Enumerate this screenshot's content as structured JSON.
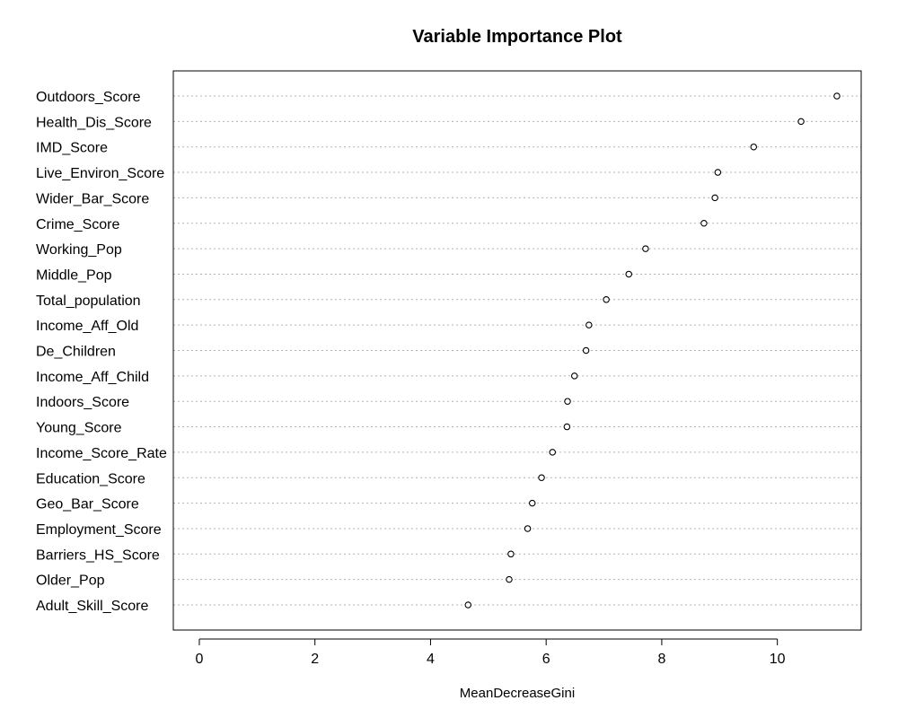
{
  "chart_data": {
    "type": "scatter",
    "title": "Variable Importance Plot",
    "xlabel": "MeanDecreaseGini",
    "ylabel": "",
    "xlim": [
      -0.45,
      11.45
    ],
    "xticks": [
      0,
      2,
      4,
      6,
      8,
      10
    ],
    "grid": "horizontal dotted lines per variable",
    "legend": "none",
    "marker": "open circle",
    "colors": {
      "point": "#000000",
      "grid": "#b3b3b3",
      "frame": "#000000",
      "background": "#ffffff"
    },
    "categories": [
      "Outdoors_Score",
      "Health_Dis_Score",
      "IMD_Score",
      "Live_Environ_Score",
      "Wider_Bar_Score",
      "Crime_Score",
      "Working_Pop",
      "Middle_Pop",
      "Total_population",
      "Income_Aff_Old",
      "De_Children",
      "Income_Aff_Child",
      "Indoors_Score",
      "Young_Score",
      "Income_Score_Rate",
      "Education_Score",
      "Geo_Bar_Score",
      "Employment_Score",
      "Barriers_HS_Score",
      "Older_Pop",
      "Adult_Skill_Score"
    ],
    "values": [
      11.03,
      10.41,
      9.59,
      8.97,
      8.92,
      8.73,
      7.72,
      7.43,
      7.04,
      6.74,
      6.69,
      6.49,
      6.37,
      6.36,
      6.11,
      5.92,
      5.76,
      5.68,
      5.39,
      5.36,
      4.65
    ]
  }
}
